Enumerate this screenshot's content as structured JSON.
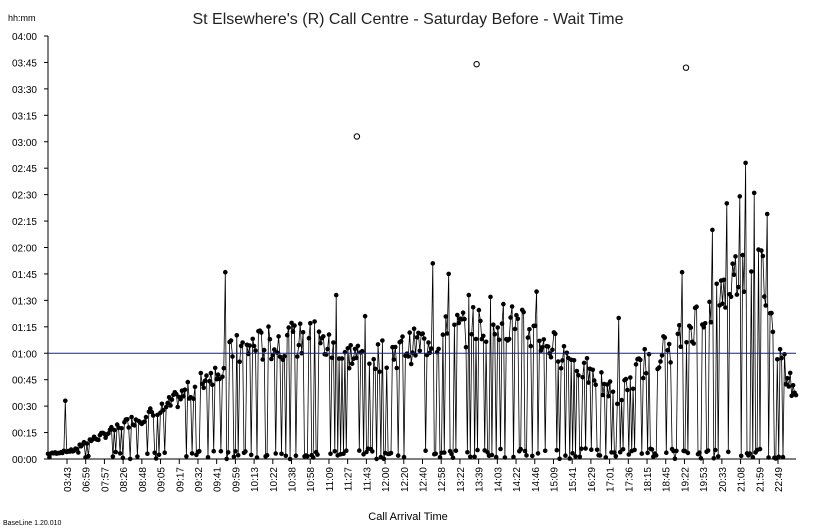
{
  "chart_data": {
    "type": "line",
    "title": "St Elsewhere's (R)  Call Centre -  Saturday Before - Wait Time",
    "ylabel": "hh:mm",
    "xlabel": "Call Arrival Time",
    "footer": "BaseLine 1.20.010",
    "y_unit": "minutes",
    "ylim": [
      0,
      240
    ],
    "yticks": [
      "00:00",
      "00:15",
      "00:30",
      "00:45",
      "01:00",
      "01:15",
      "01:30",
      "01:45",
      "02:00",
      "02:15",
      "02:30",
      "02:45",
      "03:00",
      "03:15",
      "03:30",
      "03:45",
      "04:00"
    ],
    "xticks": [
      "03:43",
      "06:59",
      "07:57",
      "08:26",
      "08:48",
      "09:05",
      "09:17",
      "09:32",
      "09:41",
      "09:59",
      "10:13",
      "10:22",
      "10:38",
      "10:58",
      "11:09",
      "11:27",
      "11:43",
      "12:00",
      "12:20",
      "12:40",
      "12:58",
      "13:22",
      "13:39",
      "14:03",
      "14:22",
      "14:46",
      "15:09",
      "15:41",
      "16:29",
      "17:01",
      "17:36",
      "18:15",
      "18:45",
      "19:22",
      "19:53",
      "20:33",
      "21:08",
      "21:59",
      "22:49"
    ],
    "target_line": {
      "value": 60,
      "label": "01:00"
    },
    "series": [
      {
        "marker": "filled-circle",
        "profile": [
          {
            "t": 0,
            "y": 3
          },
          {
            "t": 0.035,
            "y": 5
          },
          {
            "t": 0.05,
            "y": 10
          },
          {
            "t": 0.07,
            "y": 13
          },
          {
            "t": 0.11,
            "y": 22
          },
          {
            "t": 0.15,
            "y": 28
          },
          {
            "t": 0.2,
            "y": 43
          },
          {
            "t": 0.25,
            "y": 63
          },
          {
            "t": 0.3,
            "y": 68
          },
          {
            "t": 0.35,
            "y": 70
          },
          {
            "t": 0.4,
            "y": 61
          },
          {
            "t": 0.45,
            "y": 60
          },
          {
            "t": 0.5,
            "y": 68
          },
          {
            "t": 0.55,
            "y": 76
          },
          {
            "t": 0.6,
            "y": 83
          },
          {
            "t": 0.65,
            "y": 73
          },
          {
            "t": 0.7,
            "y": 58
          },
          {
            "t": 0.74,
            "y": 45
          },
          {
            "t": 0.76,
            "y": 36
          },
          {
            "t": 0.8,
            "y": 58
          },
          {
            "t": 0.84,
            "y": 68
          },
          {
            "t": 0.88,
            "y": 88
          },
          {
            "t": 0.92,
            "y": 108
          },
          {
            "t": 0.95,
            "y": 122
          },
          {
            "t": 0.97,
            "y": 72
          },
          {
            "t": 1,
            "y": 35
          }
        ],
        "peaks": [
          {
            "t": 0.024,
            "y": 33
          },
          {
            "t": 0.237,
            "y": 106
          },
          {
            "t": 0.357,
            "y": 78
          },
          {
            "t": 0.385,
            "y": 93
          },
          {
            "t": 0.423,
            "y": 81
          },
          {
            "t": 0.515,
            "y": 111
          },
          {
            "t": 0.535,
            "y": 105
          },
          {
            "t": 0.562,
            "y": 93
          },
          {
            "t": 0.592,
            "y": 92
          },
          {
            "t": 0.654,
            "y": 95
          },
          {
            "t": 0.763,
            "y": 80
          },
          {
            "t": 0.848,
            "y": 106
          },
          {
            "t": 0.889,
            "y": 130
          },
          {
            "t": 0.908,
            "y": 145
          },
          {
            "t": 0.925,
            "y": 149
          },
          {
            "t": 0.933,
            "y": 168
          },
          {
            "t": 0.944,
            "y": 151
          },
          {
            "t": 0.961,
            "y": 139
          }
        ]
      }
    ],
    "outliers": [
      {
        "t": 0.413,
        "y": 183
      },
      {
        "t": 0.573,
        "y": 224
      },
      {
        "t": 0.853,
        "y": 222
      }
    ]
  }
}
